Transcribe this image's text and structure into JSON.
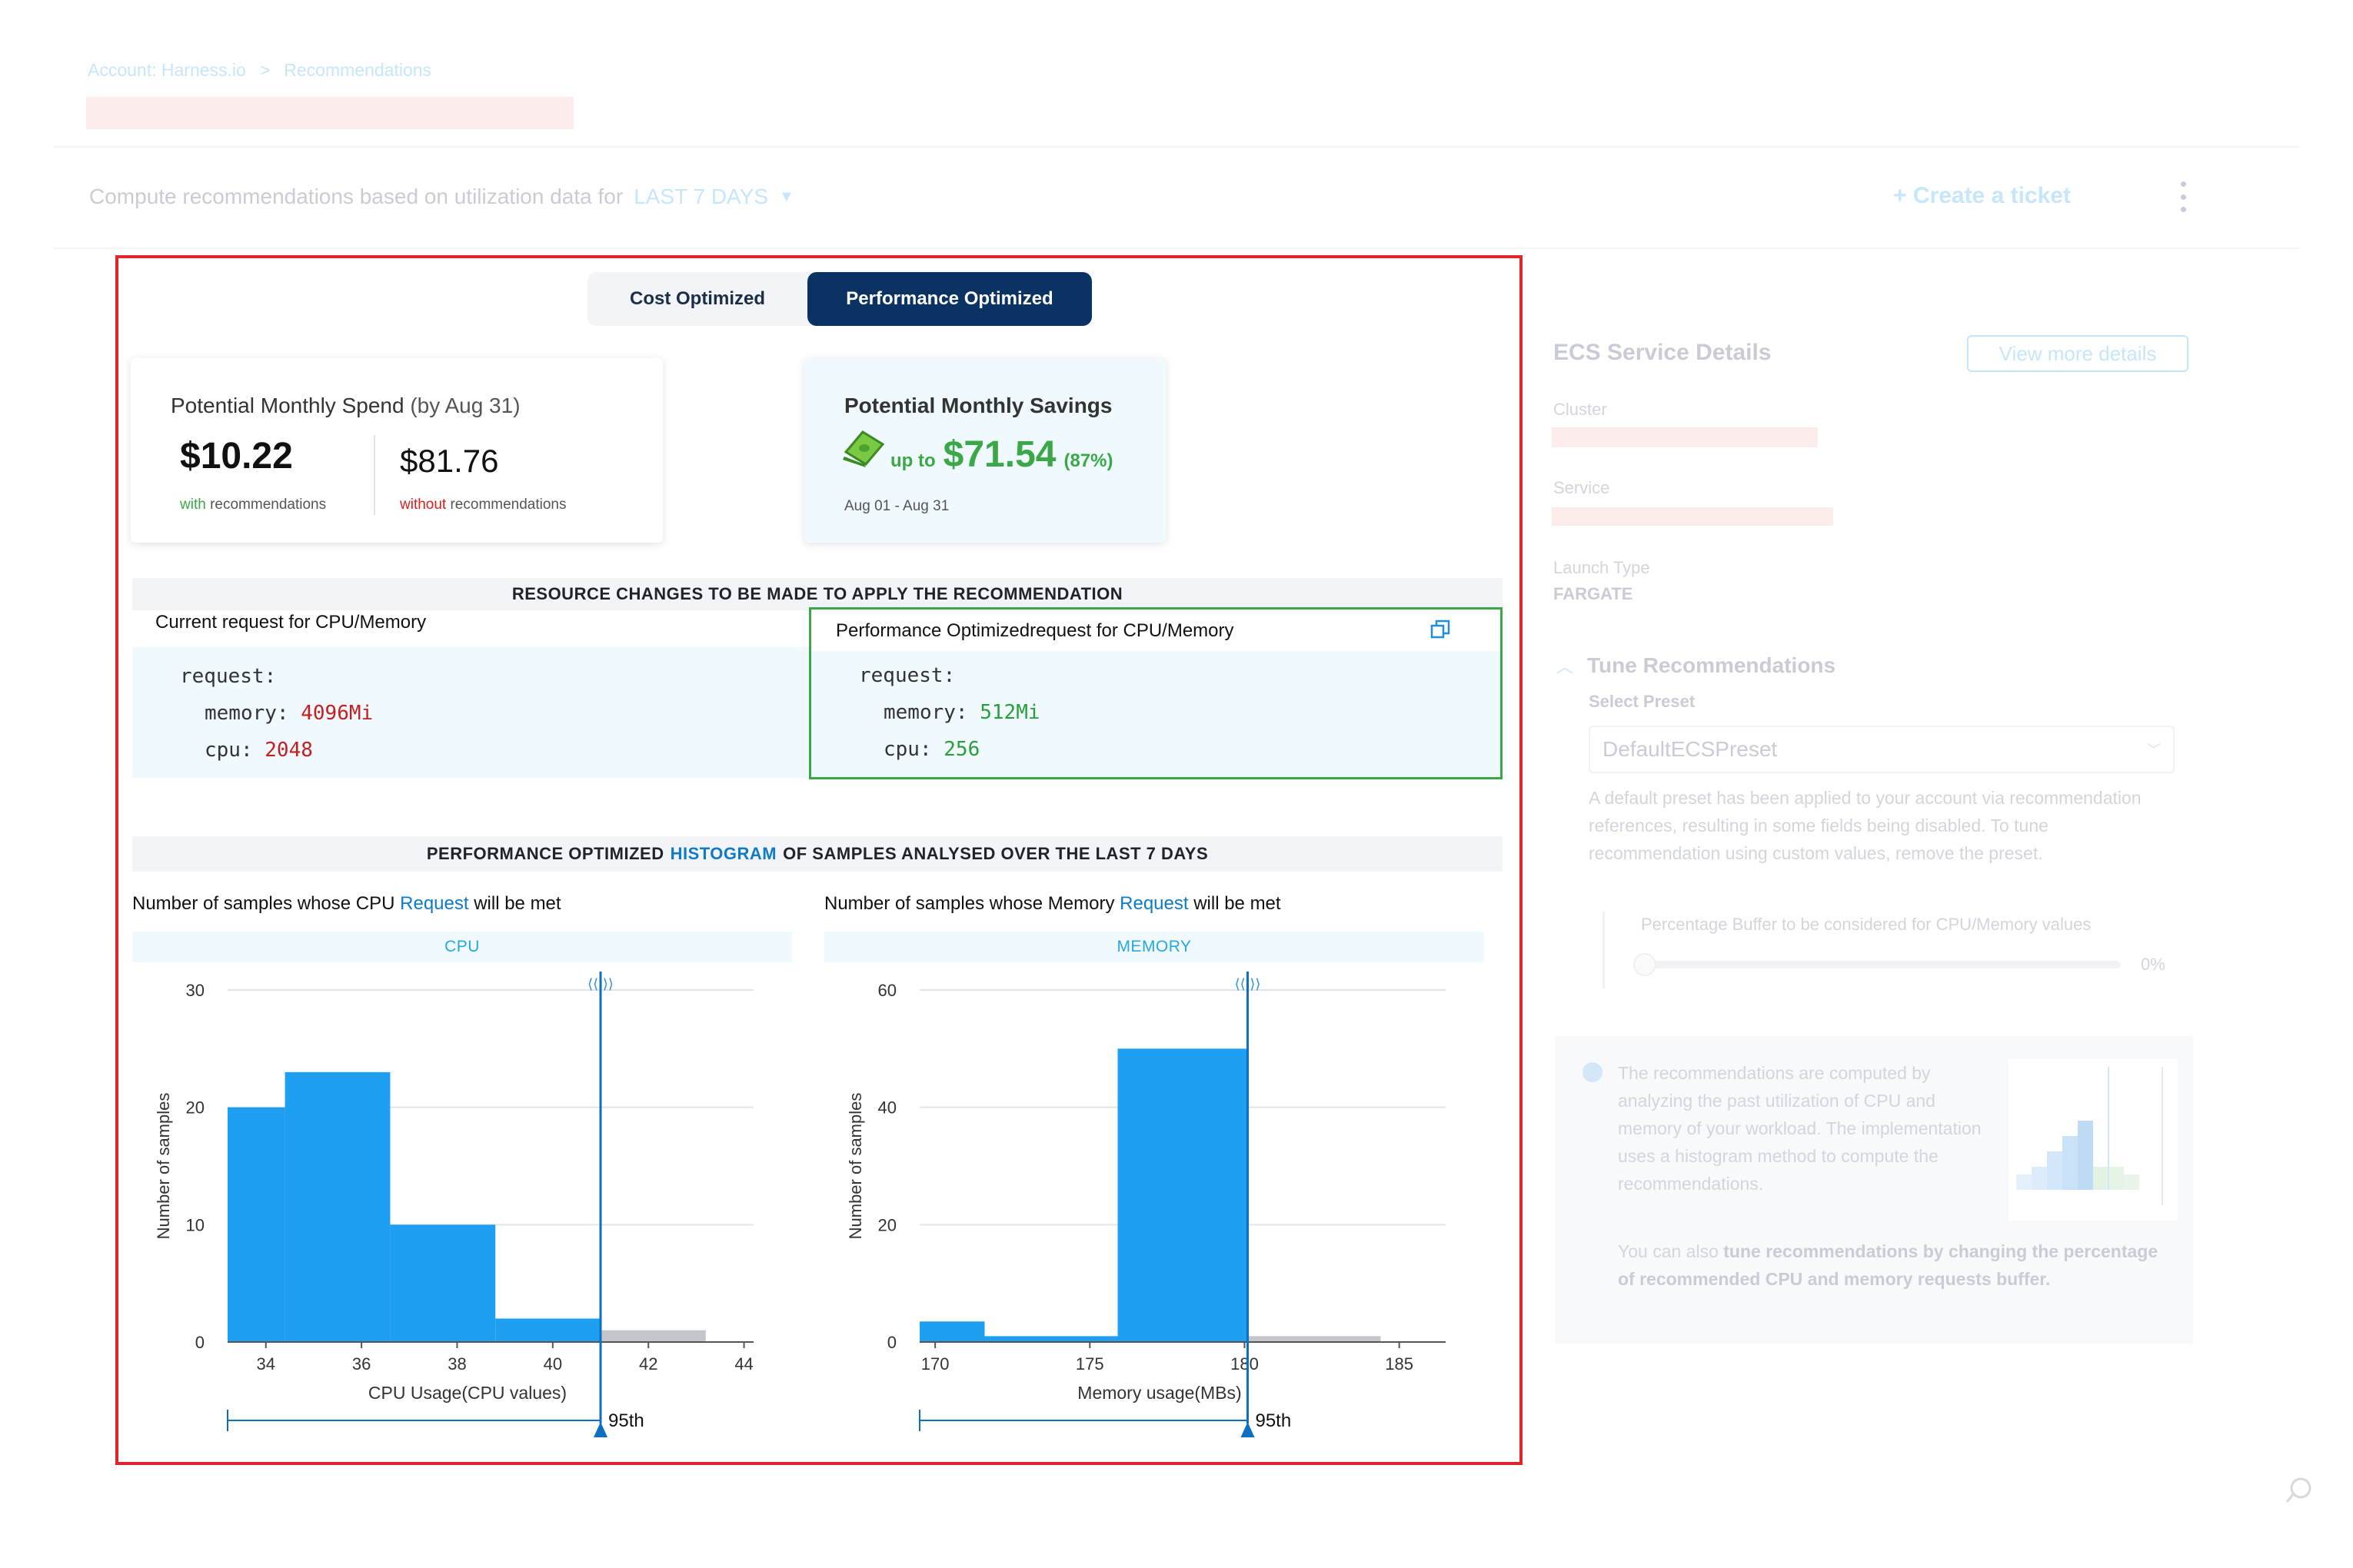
{
  "breadcrumb": {
    "account": "Account: Harness.io",
    "separator": ">",
    "page": "Recommendations"
  },
  "header": {
    "compute_text": "Compute recommendations based on utilization data for",
    "period": "LAST 7 DAYS",
    "create_ticket": "+ Create a ticket"
  },
  "toggle": {
    "cost": "Cost Optimized",
    "performance": "Performance Optimized",
    "active": "performance"
  },
  "spend": {
    "title": "Potential Monthly Spend",
    "by": "(by Aug 31)",
    "with_value": "$10.22",
    "with_word": "with",
    "with_rest": "recommendations",
    "without_value": "$81.76",
    "without_word": "without",
    "without_rest": "recommendations"
  },
  "savings": {
    "title": "Potential Monthly Savings",
    "up_to": "up to",
    "value": "$71.54",
    "percent": "(87%)",
    "range": "Aug 01 - Aug 31"
  },
  "resource_changes": {
    "heading": "RESOURCE CHANGES TO BE MADE TO APPLY THE RECOMMENDATION",
    "current_label_bold": "Current",
    "current_label_rest": "request for CPU/Memory",
    "current": {
      "request": "request:",
      "memory_key": "memory:",
      "memory_val": "4096Mi",
      "cpu_key": "cpu:",
      "cpu_val": "2048"
    },
    "recommended_label_bold": "Performance Optimized",
    "recommended_label_rest": "request for CPU/Memory",
    "recommended": {
      "request": "request:",
      "memory_key": "memory:",
      "memory_val": "512Mi",
      "cpu_key": "cpu:",
      "cpu_val": "256"
    }
  },
  "histogram": {
    "heading_pre": "PERFORMANCE OPTIMIZED",
    "heading_link": "HISTOGRAM",
    "heading_post": "OF SAMPLES ANALYSED OVER THE LAST 7 DAYS",
    "cpu_title_pre": "Number of samples whose CPU",
    "cpu_title_link": "Request",
    "cpu_title_post": "will be met",
    "mem_title_pre": "Number of samples whose Memory",
    "mem_title_link": "Request",
    "mem_title_post": "will be met",
    "percentile_label": "95th"
  },
  "chart_data": [
    {
      "type": "bar",
      "title": "CPU",
      "xlabel": "CPU Usage(CPU values)",
      "ylabel": "Number of samples",
      "xlim": [
        33.2,
        44.2
      ],
      "ylim": [
        0,
        30
      ],
      "xticks": [
        34,
        36,
        38,
        40,
        42,
        44
      ],
      "yticks": [
        0,
        10,
        20,
        30
      ],
      "bins": [
        {
          "x0": 33.2,
          "x1": 34.4,
          "y": 20,
          "kind": "met"
        },
        {
          "x0": 34.4,
          "x1": 36.6,
          "y": 23,
          "kind": "met"
        },
        {
          "x0": 36.6,
          "x1": 38.8,
          "y": 10,
          "kind": "met"
        },
        {
          "x0": 38.8,
          "x1": 41.0,
          "y": 2,
          "kind": "met"
        },
        {
          "x0": 41.0,
          "x1": 43.2,
          "y": 1,
          "kind": "unmet"
        }
      ],
      "percentile_x": 41.0,
      "slider_start_x": 33.2
    },
    {
      "type": "bar",
      "title": "MEMORY",
      "xlabel": "Memory usage(MBs)",
      "ylabel": "Number of samples",
      "xlim": [
        169.5,
        186.5
      ],
      "ylim": [
        0,
        60
      ],
      "xticks": [
        170,
        175,
        180,
        185
      ],
      "yticks": [
        0,
        20,
        40,
        60
      ],
      "bins": [
        {
          "x0": 169.5,
          "x1": 171.6,
          "y": 3.5,
          "kind": "met"
        },
        {
          "x0": 171.6,
          "x1": 175.9,
          "y": 1,
          "kind": "met"
        },
        {
          "x0": 175.9,
          "x1": 180.1,
          "y": 50,
          "kind": "met"
        },
        {
          "x0": 180.1,
          "x1": 184.4,
          "y": 1,
          "kind": "unmet"
        }
      ],
      "percentile_x": 180.1,
      "slider_start_x": 169.5
    }
  ],
  "details": {
    "title": "ECS Service Details",
    "view_more": "View more details",
    "cluster_label": "Cluster",
    "service_label": "Service",
    "launch_type_label": "Launch Type",
    "launch_type_value": "FARGATE",
    "tune_title": "Tune Recommendations",
    "select_preset_label": "Select Preset",
    "preset_value": "DefaultECSPreset",
    "preset_note": "A default preset has been applied to your account via recommendation references, resulting in some fields being disabled. To tune recommendation using custom values, remove the preset.",
    "buffer_label": "Percentage Buffer to be considered for CPU/Memory values",
    "buffer_value": "0%",
    "info_text": "The recommendations are computed by analyzing the past utilization of CPU and memory of your workload. The implementation uses a histogram method to compute the recommendations.",
    "tune_text_pre": "You can also",
    "tune_text_bold": "tune recommendations by changing the percentage of recommended CPU and memory requests buffer."
  },
  "colors": {
    "accent_dark": "#0a3364",
    "bar_met": "#1f9ff1",
    "bar_unmet": "#c4c6cc",
    "line": "#0d6fc4",
    "highlight_border": "#e0262b",
    "recommend_border": "#3aa846"
  }
}
